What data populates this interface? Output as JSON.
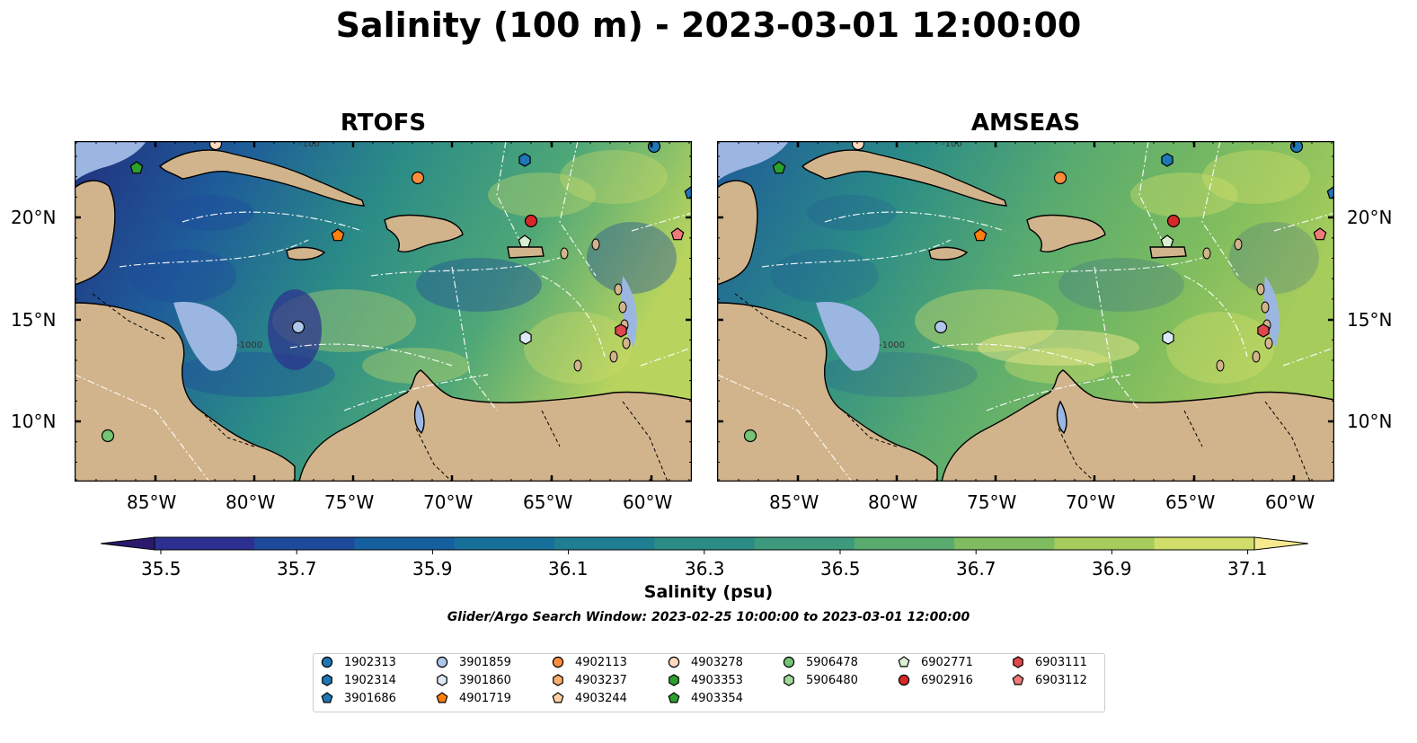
{
  "title": "Salinity (100 m) - 2023-03-01 12:00:00",
  "panels": [
    {
      "name": "rtofs",
      "title": "RTOFS"
    },
    {
      "name": "amseas",
      "title": "AMSEAS"
    }
  ],
  "lon_ticks": [
    "85°W",
    "80°W",
    "75°W",
    "70°W",
    "65°W",
    "60°W"
  ],
  "lat_ticks": [
    "20°N",
    "15°N",
    "10°N"
  ],
  "contour_labels": [
    "-100",
    "-1000"
  ],
  "colorbar": {
    "label": "Salinity (psu)",
    "ticks": [
      "35.5",
      "35.7",
      "35.9",
      "36.1",
      "36.3",
      "36.5",
      "36.7",
      "36.9",
      "37.1"
    ],
    "colors": [
      "#2b1a6b",
      "#2c2f8f",
      "#1f4a9c",
      "#17609f",
      "#17709a",
      "#1f7f92",
      "#2b8c86",
      "#3d9a7c",
      "#59ab6f",
      "#7ebc5f",
      "#a6cc5c",
      "#d1de6a",
      "#f6ea8f"
    ]
  },
  "search_window": "Glider/Argo Search Window: 2023-02-25 10:00:00 to 2023-03-01 12:00:00",
  "legend": [
    {
      "id": "1902313",
      "shape": "circle",
      "color": "#1f77b4"
    },
    {
      "id": "1902314",
      "shape": "hexagon",
      "color": "#1f77b4"
    },
    {
      "id": "3901686",
      "shape": "pentagon",
      "color": "#1f77b4"
    },
    {
      "id": "3901859",
      "shape": "circle",
      "color": "#aec7e8"
    },
    {
      "id": "3901860",
      "shape": "hexagon",
      "color": "#dbe9f6"
    },
    {
      "id": "4901719",
      "shape": "pentagon",
      "color": "#ff7f0e"
    },
    {
      "id": "4902113",
      "shape": "circle",
      "color": "#fd8d3c"
    },
    {
      "id": "4903237",
      "shape": "hexagon",
      "color": "#fdae6b"
    },
    {
      "id": "4903244",
      "shape": "pentagon",
      "color": "#fdd0a2"
    },
    {
      "id": "4903278",
      "shape": "circle",
      "color": "#fdd9bf"
    },
    {
      "id": "4903353",
      "shape": "hexagon",
      "color": "#2ca02c"
    },
    {
      "id": "4903354",
      "shape": "pentagon",
      "color": "#2ca02c"
    },
    {
      "id": "5906478",
      "shape": "circle",
      "color": "#74c476"
    },
    {
      "id": "5906480",
      "shape": "hexagon",
      "color": "#a1d99b"
    },
    {
      "id": "6902771",
      "shape": "pentagon",
      "color": "#d9f0d3"
    },
    {
      "id": "6902916",
      "shape": "circle",
      "color": "#d62728"
    },
    {
      "id": "6903111",
      "shape": "hexagon",
      "color": "#e0474c"
    },
    {
      "id": "6903112",
      "shape": "pentagon",
      "color": "#f07a7a"
    }
  ],
  "colors": {
    "land": "#d2b48c",
    "shallow_water": "#9cb6e2",
    "frame": "#000000"
  }
}
